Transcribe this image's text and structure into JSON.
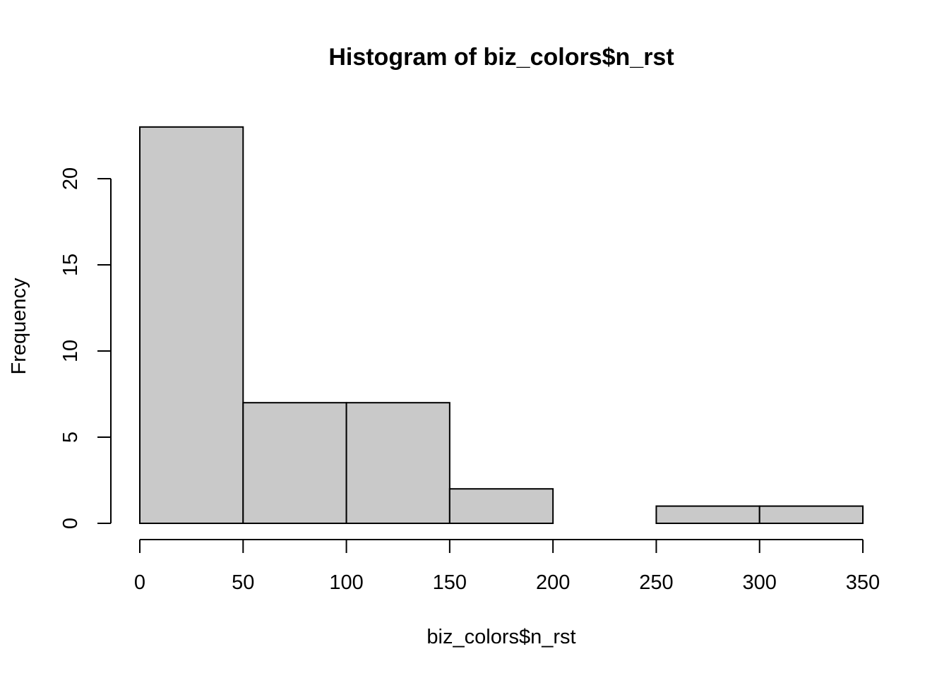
{
  "chart_data": {
    "type": "bar",
    "title": "Histogram of biz_colors$n_rst",
    "xlabel": "biz_colors$n_rst",
    "ylabel": "Frequency",
    "bins": [
      {
        "start": 0,
        "end": 50,
        "count": 23
      },
      {
        "start": 50,
        "end": 100,
        "count": 7
      },
      {
        "start": 100,
        "end": 150,
        "count": 7
      },
      {
        "start": 150,
        "end": 200,
        "count": 2
      },
      {
        "start": 200,
        "end": 250,
        "count": 0
      },
      {
        "start": 250,
        "end": 300,
        "count": 1
      },
      {
        "start": 300,
        "end": 350,
        "count": 1
      }
    ],
    "xlim": [
      0,
      350
    ],
    "ylim": [
      0,
      23
    ],
    "x_ticks": [
      "0",
      "50",
      "100",
      "150",
      "200",
      "250",
      "300",
      "350"
    ],
    "y_ticks": [
      "0",
      "5",
      "10",
      "15",
      "20"
    ],
    "bar_fill": "#c9c9c9",
    "bar_stroke": "#000000",
    "grid": false
  }
}
